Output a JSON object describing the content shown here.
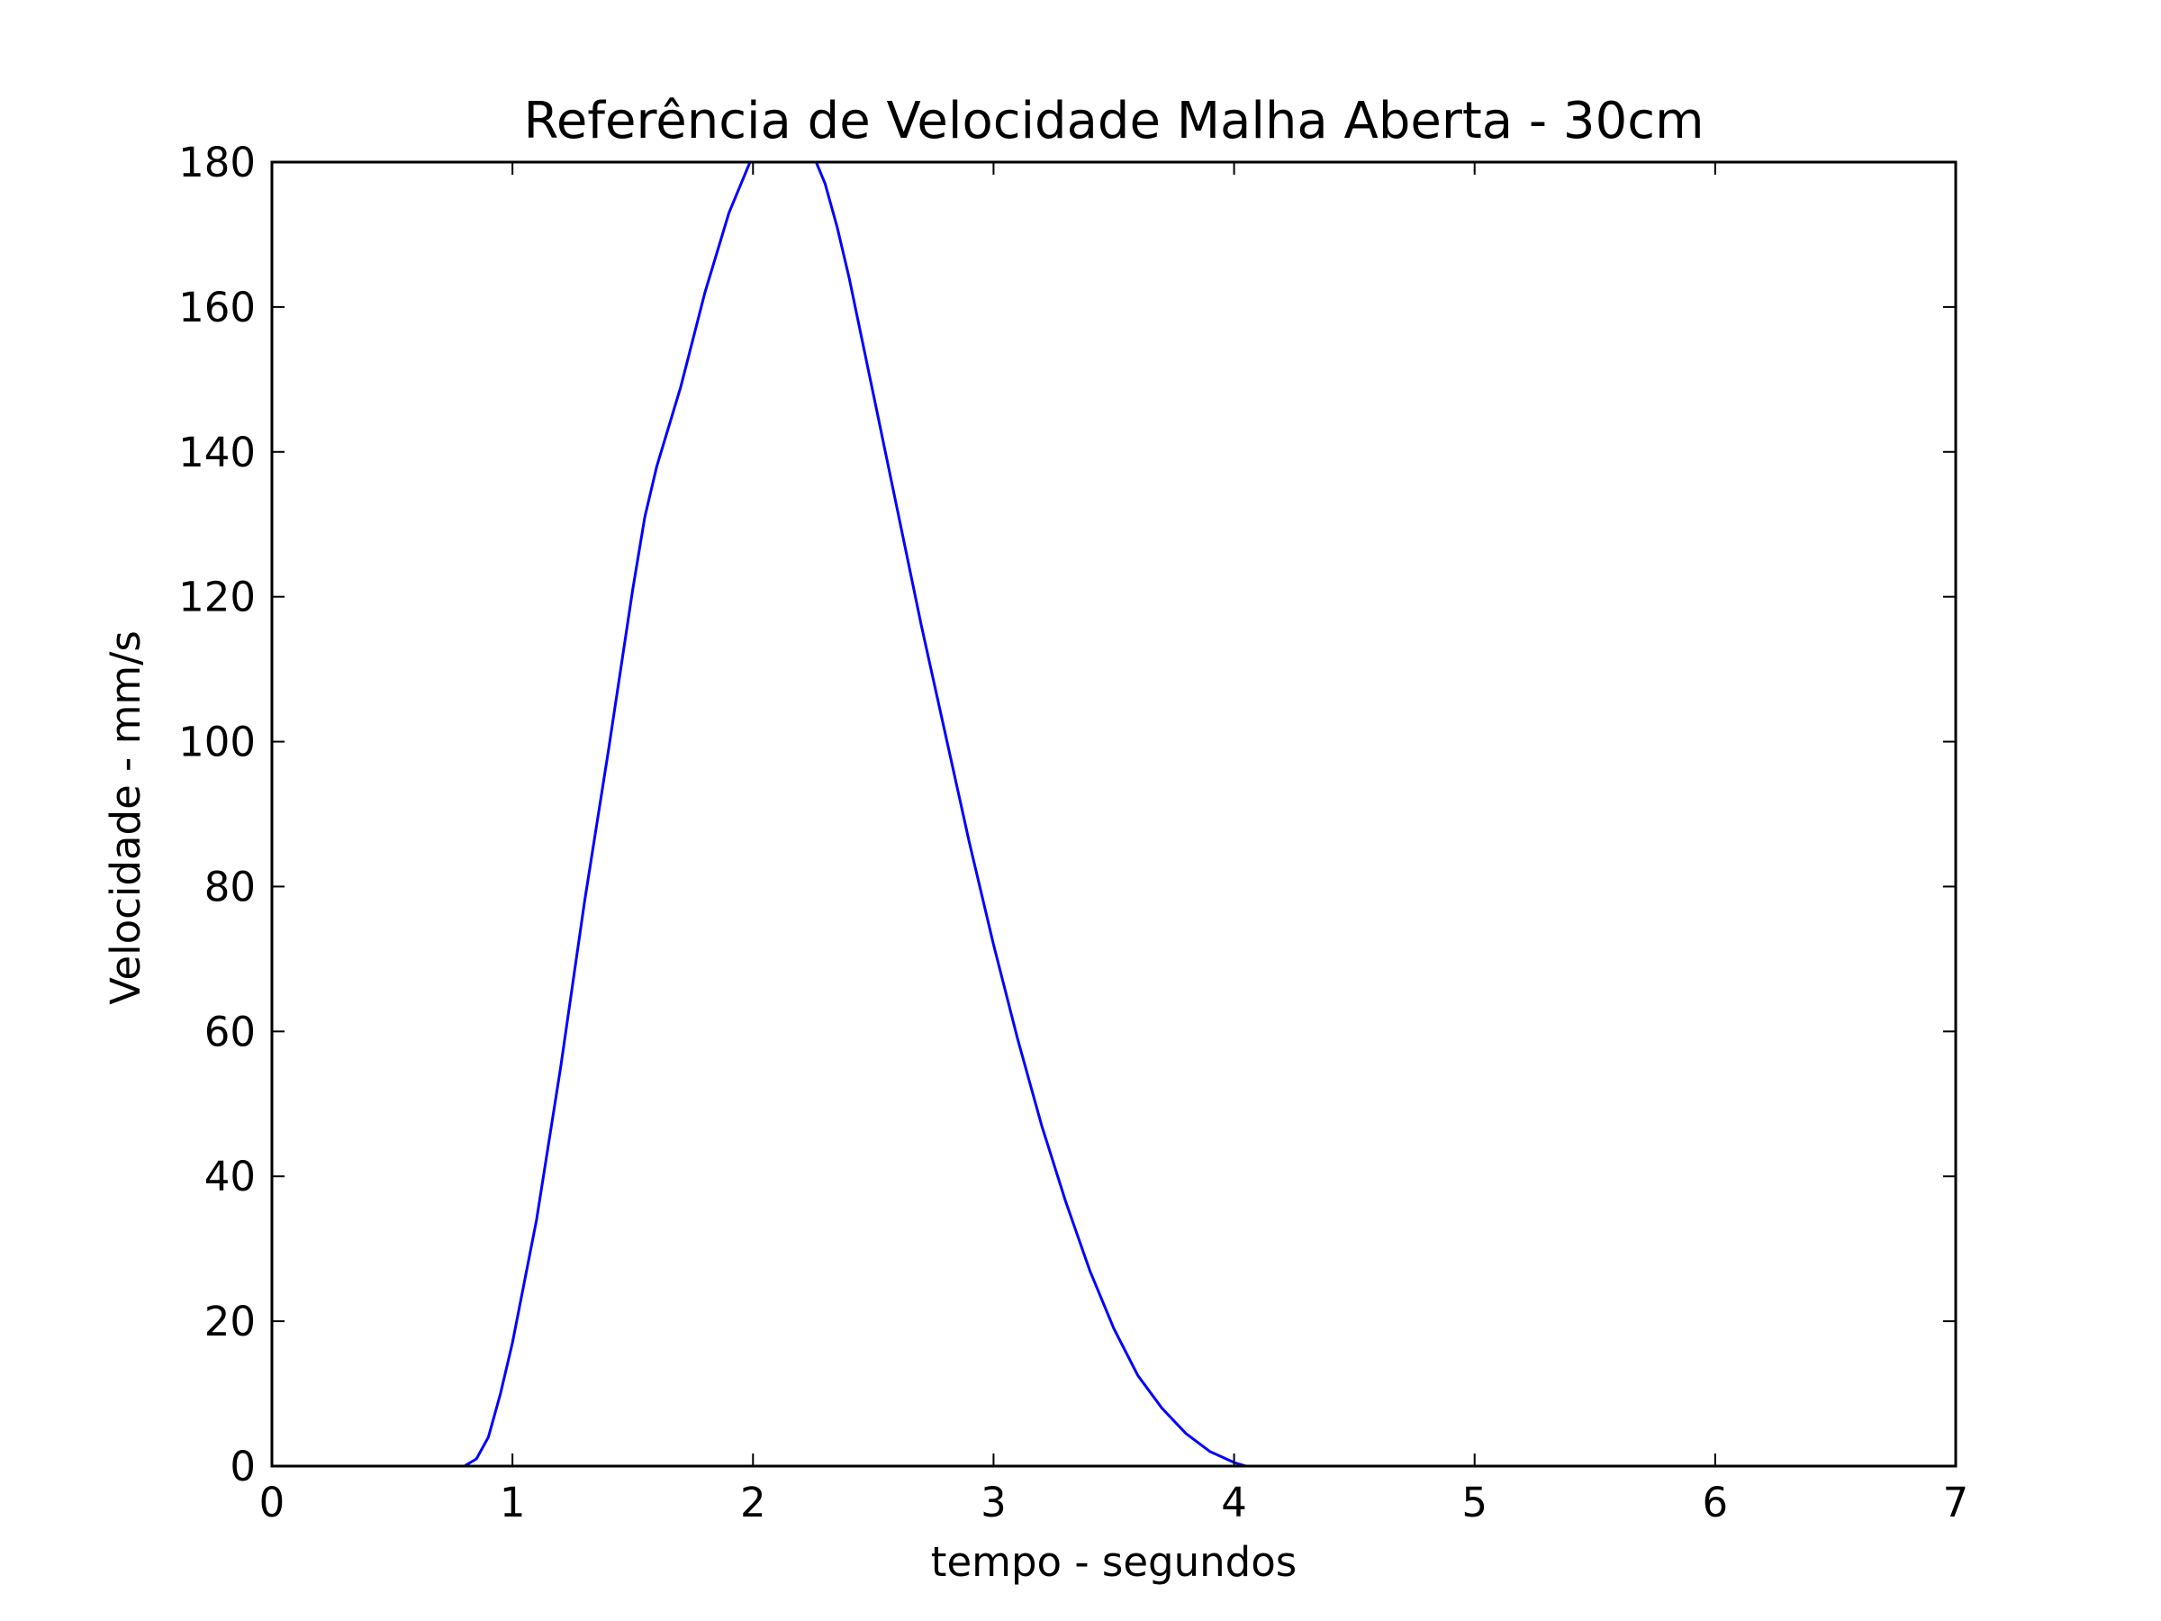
{
  "chart_data": {
    "type": "line",
    "title": "Referência de Velocidade Malha Aberta - 30cm",
    "xlabel": "tempo - segundos",
    "ylabel": "Velocidade - mm/s",
    "xlim": [
      0,
      7
    ],
    "ylim": [
      0,
      180
    ],
    "xticks": [
      0,
      1,
      2,
      3,
      4,
      5,
      6,
      7
    ],
    "xtick_labels": [
      "0",
      "1",
      "2",
      "3",
      "4",
      "5",
      "6",
      "7"
    ],
    "yticks": [
      0,
      20,
      40,
      60,
      80,
      100,
      120,
      140,
      160,
      180
    ],
    "ytick_labels": [
      "0",
      "20",
      "40",
      "60",
      "80",
      "100",
      "120",
      "140",
      "160",
      "180"
    ],
    "grid": false,
    "legend": "none",
    "series": [
      {
        "color": "#0000ff",
        "x": [
          0.0,
          0.5,
          0.8,
          0.85,
          0.9,
          0.95,
          1.0,
          1.1,
          1.2,
          1.3,
          1.4,
          1.5,
          1.55,
          1.6,
          1.7,
          1.8,
          1.9,
          2.0,
          2.1,
          2.2,
          2.25,
          2.3,
          2.35,
          2.4,
          2.45,
          2.5,
          2.6,
          2.7,
          2.8,
          2.9,
          3.0,
          3.1,
          3.2,
          3.3,
          3.4,
          3.5,
          3.6,
          3.7,
          3.8,
          3.9,
          4.0,
          4.05,
          4.1,
          4.15,
          4.2,
          4.25,
          4.3,
          4.35,
          4.4,
          5.0,
          6.0,
          7.0
        ],
        "y": [
          0,
          0,
          0,
          1,
          4,
          10,
          17,
          34,
          55,
          78,
          99,
          121,
          131,
          138,
          149,
          162,
          173,
          181,
          185,
          183,
          181,
          177,
          171,
          164,
          156,
          148,
          132,
          116,
          101,
          86,
          72,
          59,
          47,
          36.5,
          27,
          19,
          12.5,
          8,
          4.5,
          2,
          0.5,
          0,
          0,
          0,
          0,
          0,
          0,
          0,
          0,
          0,
          0,
          0
        ]
      }
    ]
  }
}
